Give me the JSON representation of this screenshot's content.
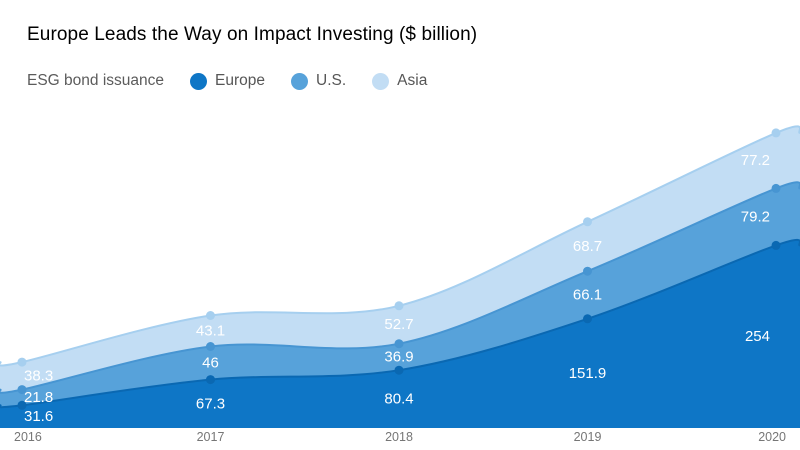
{
  "title": "Europe Leads the Way on Impact Investing ($ billion)",
  "legend": {
    "caption": "ESG bond issuance",
    "items": [
      {
        "name": "Europe"
      },
      {
        "name": "U.S."
      },
      {
        "name": "Asia"
      }
    ]
  },
  "chart_data": {
    "type": "area",
    "stacked": true,
    "title": "Europe Leads the Way on Impact Investing ($ billion)",
    "x": [
      "2016",
      "2017",
      "2018",
      "2019",
      "2020"
    ],
    "series": [
      {
        "name": "Europe",
        "values": [
          31.6,
          67.3,
          80.4,
          151.9,
          254
        ],
        "fill": "#0e76c6",
        "line": "#0a68b2",
        "dot": "#0a68b2",
        "label_color": "#ffffff"
      },
      {
        "name": "U.S.",
        "values": [
          21.8,
          46,
          36.9,
          66.1,
          79.2
        ],
        "fill": "#57a2da",
        "line": "#4795d2",
        "dot": "#4795d2",
        "label_color": "#ffffff"
      },
      {
        "name": "Asia",
        "values": [
          38.3,
          43.1,
          52.7,
          68.7,
          77.2
        ],
        "fill": "#c2ddf4",
        "line": "#a6cfef",
        "dot": "#a6cfef",
        "label_color": "#ffffff"
      }
    ],
    "ylim": [
      0,
      420
    ],
    "grid": false,
    "legend_position": "top",
    "axis_label_color": "#767676"
  }
}
